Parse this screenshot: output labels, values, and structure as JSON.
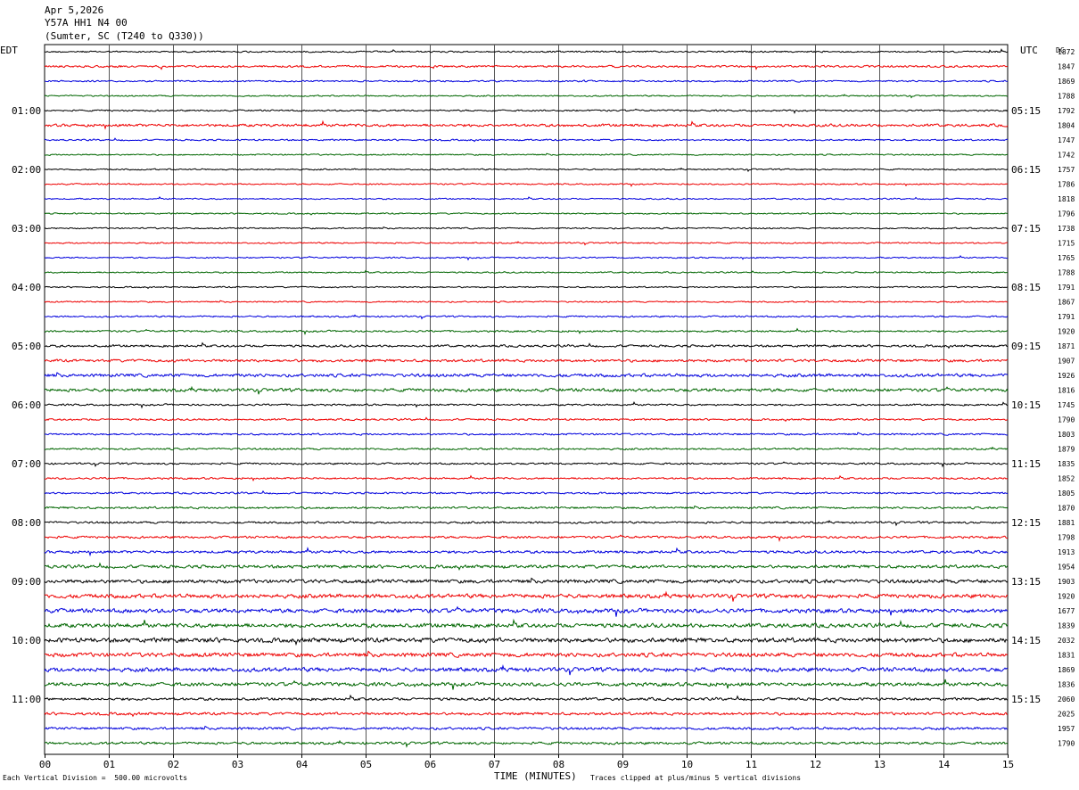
{
  "header": {
    "date": "Apr 5,2026",
    "station": "Y57A HH1 N4 00",
    "location": "(Sumter, SC (T240 to Q330))"
  },
  "left_axis_label": "EDT",
  "right_axis_label": "UTC",
  "dc_label": "DC",
  "footer": {
    "scale_note": "Each Vertical Division =  500.00 microvolts",
    "clip_note": "Traces clipped at plus/minus 5 vertical divisions"
  },
  "chart_data": {
    "type": "line",
    "subtype": "helicorder",
    "xlabel": "TIME (MINUTES)",
    "xlim": [
      0,
      15
    ],
    "x_ticks": [
      "00",
      "01",
      "02",
      "03",
      "04",
      "05",
      "06",
      "07",
      "08",
      "09",
      "10",
      "11",
      "12",
      "13",
      "14",
      "15"
    ],
    "trace_colors": [
      "#000000",
      "#ee0000",
      "#0000dd",
      "#006600"
    ],
    "left_time_labels": [
      "01:00",
      "02:00",
      "03:00",
      "04:00",
      "05:00",
      "06:00",
      "07:00",
      "08:00",
      "09:00",
      "10:00",
      "11:00"
    ],
    "right_time_labels": [
      "05:15",
      "06:15",
      "07:15",
      "08:15",
      "09:15",
      "10:15",
      "11:15",
      "12:15",
      "13:15",
      "14:15",
      "15:15"
    ],
    "dc_offsets": [
      "1872",
      "1847",
      "1869",
      "1788",
      "1792",
      "1804",
      "1747",
      "1742",
      "1757",
      "1786",
      "1818",
      "1796",
      "1738",
      "1715",
      "1765",
      "1788",
      "1791",
      "1867",
      "1791",
      "1920",
      "1871",
      "1907",
      "1926",
      "1816",
      "1745",
      "1790",
      "1803",
      "1879",
      "1835",
      "1852",
      "1805",
      "1870",
      "1881",
      "1798",
      "1913",
      "1954",
      "1903",
      "1920",
      "1677",
      "1839",
      "2032",
      "1831",
      "1869",
      "1836",
      "2060",
      "2025",
      "1957",
      "1790"
    ],
    "noise_levels": [
      0.35,
      0.45,
      0.35,
      0.3,
      0.35,
      0.6,
      0.35,
      0.3,
      0.3,
      0.3,
      0.3,
      0.3,
      0.3,
      0.3,
      0.3,
      0.3,
      0.3,
      0.3,
      0.35,
      0.4,
      0.5,
      0.6,
      0.7,
      0.7,
      0.4,
      0.4,
      0.4,
      0.4,
      0.4,
      0.4,
      0.4,
      0.45,
      0.45,
      0.5,
      0.6,
      0.7,
      0.8,
      0.9,
      0.9,
      0.9,
      1.0,
      0.9,
      0.9,
      0.8,
      0.6,
      0.6,
      0.55,
      0.55
    ]
  }
}
